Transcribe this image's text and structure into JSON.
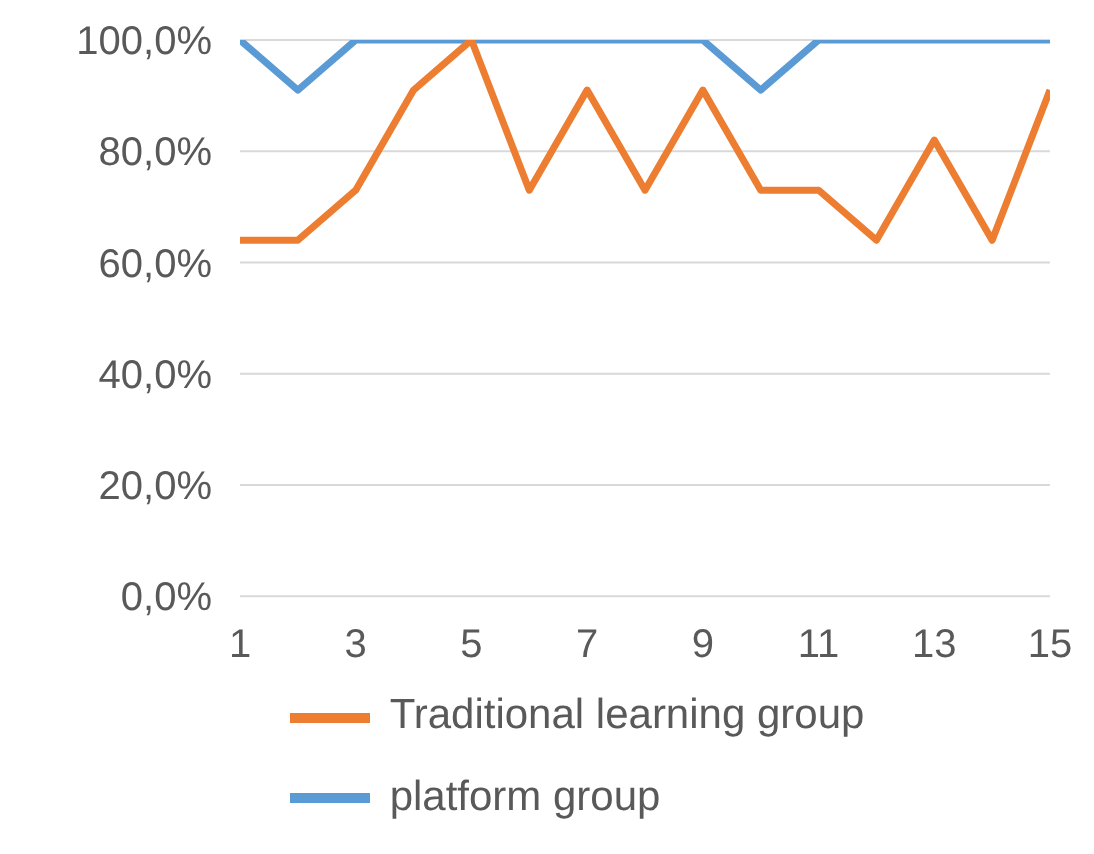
{
  "chart_data": {
    "type": "line",
    "x": [
      1,
      2,
      3,
      4,
      5,
      6,
      7,
      8,
      9,
      10,
      11,
      12,
      13,
      14,
      15
    ],
    "series": [
      {
        "name": "platform group",
        "color": "#5b9bd5",
        "values": [
          100,
          91,
          100,
          100,
          100,
          100,
          100,
          100,
          100,
          91,
          100,
          100,
          100,
          100,
          100
        ]
      },
      {
        "name": "Traditional learning group",
        "color": "#ed7d31",
        "values": [
          64,
          64,
          73,
          91,
          100,
          73,
          91,
          73,
          91,
          73,
          73,
          64,
          82,
          64,
          91
        ]
      }
    ],
    "xlim": [
      1,
      15
    ],
    "xticks": [
      1,
      3,
      5,
      7,
      9,
      11,
      13,
      15
    ],
    "ylim": [
      0,
      100
    ],
    "yticks": [
      {
        "value": 0,
        "label": "0,0%"
      },
      {
        "value": 20,
        "label": "20,0%"
      },
      {
        "value": 40,
        "label": "40,0%"
      },
      {
        "value": 60,
        "label": "60,0%"
      },
      {
        "value": 80,
        "label": "80,0%"
      },
      {
        "value": 100,
        "label": "100,0%"
      }
    ],
    "grid": "y",
    "legend": "bottom",
    "marker": "none",
    "line_style": "solid"
  }
}
